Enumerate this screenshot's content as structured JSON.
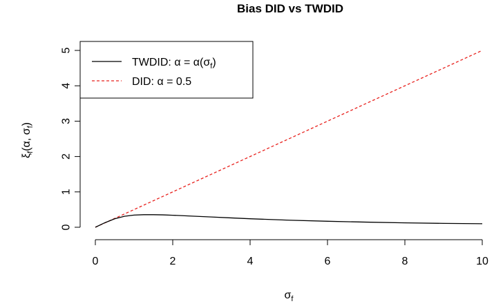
{
  "chart_data": {
    "type": "line",
    "title": "Bias DID vs TWDID",
    "xlabel": "σ",
    "xlabel_sub": "f",
    "ylabel": {
      "main": "ξ",
      "sub": "f",
      "rest": "(α, σ",
      "sub2": "f",
      "close": ")"
    },
    "xlim": [
      0,
      10
    ],
    "ylim": [
      0,
      5
    ],
    "x_ticks": [
      "0",
      "2",
      "4",
      "6",
      "8",
      "10"
    ],
    "y_ticks": [
      "0",
      "1",
      "2",
      "3",
      "4",
      "5"
    ],
    "grid": false,
    "legend_position": "top-left",
    "series": [
      {
        "legend": {
          "prefix": "TWDID: α = α(σ",
          "sub": "f",
          "suffix": ")"
        },
        "color": "#000000",
        "dash": "solid",
        "x": [
          0,
          0.25,
          0.5,
          0.75,
          1.0,
          1.25,
          1.5,
          1.75,
          2.0,
          2.5,
          3.0,
          3.5,
          4.0,
          5.0,
          6.0,
          7.0,
          8.0,
          9.0,
          10.0
        ],
        "y": [
          0,
          0.13,
          0.24,
          0.31,
          0.345,
          0.355,
          0.355,
          0.35,
          0.34,
          0.315,
          0.29,
          0.265,
          0.24,
          0.2,
          0.17,
          0.145,
          0.125,
          0.11,
          0.1
        ]
      },
      {
        "legend": {
          "prefix": "DID: α = 0.5",
          "sub": "",
          "suffix": ""
        },
        "color": "#e8201c",
        "dash": "4,3",
        "x": [
          0,
          10
        ],
        "y": [
          0,
          5
        ]
      }
    ]
  }
}
